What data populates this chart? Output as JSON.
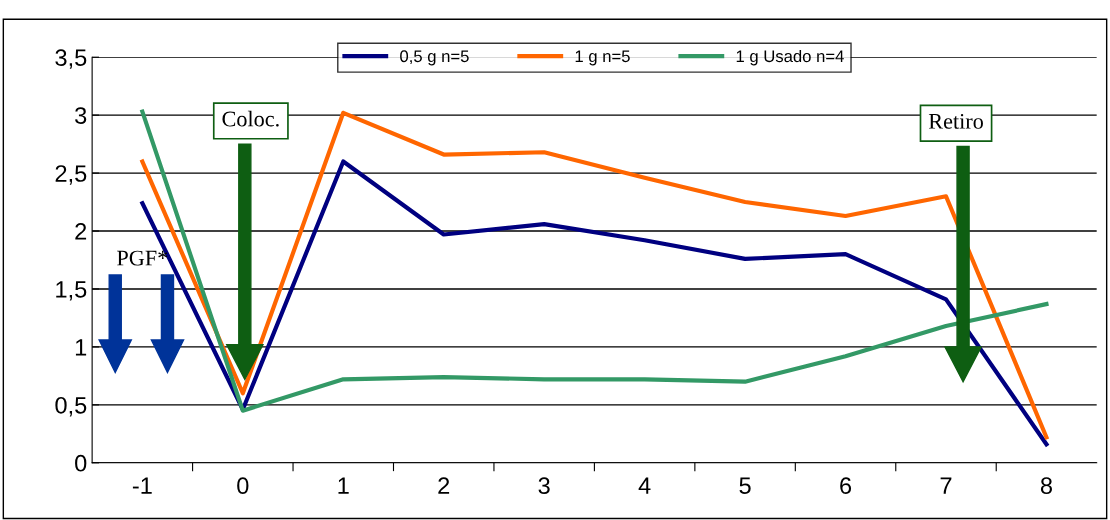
{
  "chart_data": {
    "type": "line",
    "categories": [
      "-1",
      "0",
      "1",
      "2",
      "3",
      "4",
      "5",
      "6",
      "7",
      "8"
    ],
    "series": [
      {
        "name": "0,5 g n=5",
        "color": "#000080",
        "values": [
          2.24,
          0.46,
          2.6,
          1.97,
          2.06,
          1.92,
          1.76,
          1.8,
          1.41,
          0.16
        ]
      },
      {
        "name": "1 g n=5",
        "color": "#ff6600",
        "values": [
          2.6,
          0.6,
          3.02,
          2.66,
          2.68,
          2.46,
          2.25,
          2.13,
          2.3,
          0.22
        ]
      },
      {
        "name": "1 g Usado n=4",
        "color": "#339966",
        "values": [
          3.03,
          0.45,
          0.72,
          0.74,
          0.72,
          0.72,
          0.7,
          0.92,
          1.18,
          1.37
        ]
      }
    ],
    "ylim": [
      0,
      3.5
    ],
    "yticks": [
      0,
      {
        "value": 0.5,
        "label": "0,5"
      },
      1,
      {
        "value": 1.5,
        "label": "1,5"
      },
      2,
      {
        "value": 2.5,
        "label": "2,5"
      },
      3,
      {
        "value": 3.5,
        "label": "3,5"
      }
    ],
    "annotations": [
      "PGF*",
      "Coloc.",
      "Retiro"
    ],
    "grid": "y",
    "legend": "top",
    "marker": "none",
    "line_style": "solid"
  }
}
